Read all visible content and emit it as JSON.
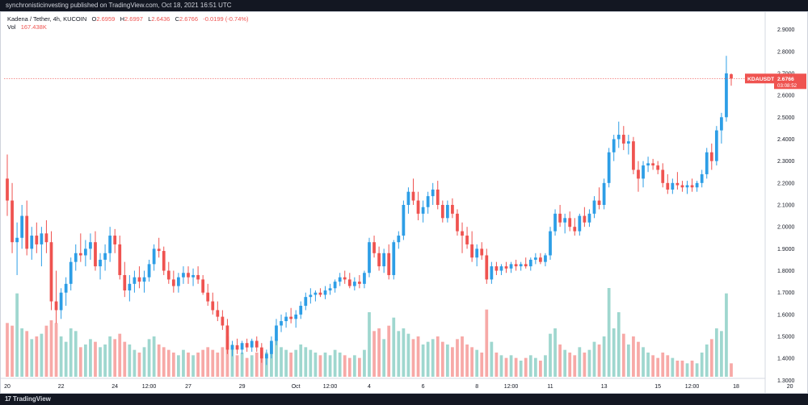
{
  "header": {
    "publisher_line": "synchronisticinvesting published on TradingView.com, Oct 18, 2021 16:51 UTC"
  },
  "legend": {
    "symbol_line": "Kadena / Tether, 4h, KUCOIN",
    "open_label": "O",
    "open": "2.6959",
    "high_label": "H",
    "high": "2.6997",
    "low_label": "L",
    "low": "2.6436",
    "close_label": "C",
    "close": "2.6766",
    "change": "-0.0199 (-0.74%)",
    "vol_label": "Vol",
    "vol_value": "167.438K"
  },
  "price_tag": {
    "symbol": "KDAUSDT",
    "price": "2.6766",
    "countdown": "03:08:52"
  },
  "footer": {
    "brand": "TradingView",
    "brand_mark": "17"
  },
  "colors": {
    "up": "#26a69a",
    "up_bar": "#2d9ee6",
    "down": "#ef5350",
    "vol_up": "#9fd7cf",
    "vol_down": "#f7a9a7",
    "current_price_line": "#ef5350"
  },
  "chart_data": {
    "type": "candlestick",
    "symbol": "KDAUSDT",
    "interval": "4h",
    "exchange": "KUCOIN",
    "y_axis": {
      "position": "right",
      "ylim": [
        1.25,
        2.95
      ],
      "ticks": [
        2.9,
        2.8,
        2.7,
        2.6,
        2.5,
        2.4,
        2.3,
        2.2,
        2.1,
        2.0,
        1.9,
        1.8,
        1.7,
        1.6,
        1.5,
        1.4,
        1.3
      ],
      "tick_labels": [
        "2.9000",
        "2.8000",
        "2.7000",
        "2.6000",
        "2.5000",
        "2.4000",
        "2.3000",
        "2.2000",
        "2.1000",
        "2.0000",
        "1.9000",
        "1.8000",
        "1.7000",
        "1.6000",
        "1.5000",
        "1.4000",
        "1.3000"
      ]
    },
    "x_axis": {
      "tick_labels": [
        "20",
        "22",
        "24",
        "12:00",
        "27",
        "29",
        "Oct",
        "12:00",
        "4",
        "6",
        "8",
        "12:00",
        "11",
        "13",
        "15",
        "12:00",
        "18",
        "20"
      ],
      "tick_index": [
        0,
        11,
        22,
        29,
        37,
        48,
        59,
        66,
        74,
        85,
        96,
        103,
        111,
        122,
        133,
        140,
        149,
        160
      ]
    },
    "current_price": 2.6766,
    "grid": false,
    "candles": [
      {
        "o": 2.22,
        "h": 2.33,
        "l": 2.05,
        "c": 2.12,
        "v": 1.0
      },
      {
        "o": 2.12,
        "h": 2.2,
        "l": 1.88,
        "c": 1.93,
        "v": 0.95
      },
      {
        "o": 1.93,
        "h": 2.02,
        "l": 1.78,
        "c": 1.95,
        "v": 1.55
      },
      {
        "o": 1.95,
        "h": 2.1,
        "l": 1.9,
        "c": 2.05,
        "v": 0.9
      },
      {
        "o": 2.05,
        "h": 2.12,
        "l": 1.87,
        "c": 1.9,
        "v": 0.85
      },
      {
        "o": 1.9,
        "h": 2.0,
        "l": 1.85,
        "c": 1.96,
        "v": 0.7
      },
      {
        "o": 1.96,
        "h": 2.02,
        "l": 1.88,
        "c": 1.92,
        "v": 0.75
      },
      {
        "o": 1.92,
        "h": 2.0,
        "l": 1.82,
        "c": 1.97,
        "v": 0.8
      },
      {
        "o": 1.97,
        "h": 2.03,
        "l": 1.88,
        "c": 1.93,
        "v": 0.95
      },
      {
        "o": 1.93,
        "h": 1.98,
        "l": 1.62,
        "c": 1.66,
        "v": 1.05
      },
      {
        "o": 1.66,
        "h": 1.8,
        "l": 1.56,
        "c": 1.62,
        "v": 1.0
      },
      {
        "o": 1.62,
        "h": 1.72,
        "l": 1.58,
        "c": 1.7,
        "v": 0.75
      },
      {
        "o": 1.7,
        "h": 1.77,
        "l": 1.64,
        "c": 1.74,
        "v": 0.65
      },
      {
        "o": 1.74,
        "h": 1.86,
        "l": 1.71,
        "c": 1.84,
        "v": 0.9
      },
      {
        "o": 1.84,
        "h": 1.92,
        "l": 1.8,
        "c": 1.88,
        "v": 0.85
      },
      {
        "o": 1.88,
        "h": 1.97,
        "l": 1.84,
        "c": 1.87,
        "v": 0.55
      },
      {
        "o": 1.87,
        "h": 1.94,
        "l": 1.82,
        "c": 1.9,
        "v": 0.6
      },
      {
        "o": 1.9,
        "h": 1.97,
        "l": 1.85,
        "c": 1.93,
        "v": 0.7
      },
      {
        "o": 1.93,
        "h": 1.98,
        "l": 1.8,
        "c": 1.82,
        "v": 0.65
      },
      {
        "o": 1.82,
        "h": 1.88,
        "l": 1.76,
        "c": 1.85,
        "v": 0.55
      },
      {
        "o": 1.85,
        "h": 1.92,
        "l": 1.8,
        "c": 1.88,
        "v": 0.6
      },
      {
        "o": 1.88,
        "h": 2.0,
        "l": 1.84,
        "c": 1.96,
        "v": 0.75
      },
      {
        "o": 1.96,
        "h": 1.99,
        "l": 1.88,
        "c": 1.92,
        "v": 0.7
      },
      {
        "o": 1.92,
        "h": 1.96,
        "l": 1.76,
        "c": 1.78,
        "v": 0.8
      },
      {
        "o": 1.78,
        "h": 1.84,
        "l": 1.68,
        "c": 1.71,
        "v": 0.65
      },
      {
        "o": 1.71,
        "h": 1.78,
        "l": 1.66,
        "c": 1.74,
        "v": 0.6
      },
      {
        "o": 1.74,
        "h": 1.8,
        "l": 1.7,
        "c": 1.77,
        "v": 0.5
      },
      {
        "o": 1.77,
        "h": 1.82,
        "l": 1.72,
        "c": 1.75,
        "v": 0.45
      },
      {
        "o": 1.75,
        "h": 1.8,
        "l": 1.7,
        "c": 1.77,
        "v": 0.55
      },
      {
        "o": 1.77,
        "h": 1.85,
        "l": 1.75,
        "c": 1.83,
        "v": 0.7
      },
      {
        "o": 1.83,
        "h": 1.92,
        "l": 1.8,
        "c": 1.9,
        "v": 0.75
      },
      {
        "o": 1.9,
        "h": 1.95,
        "l": 1.86,
        "c": 1.89,
        "v": 0.6
      },
      {
        "o": 1.89,
        "h": 1.91,
        "l": 1.78,
        "c": 1.8,
        "v": 0.55
      },
      {
        "o": 1.8,
        "h": 1.84,
        "l": 1.74,
        "c": 1.76,
        "v": 0.5
      },
      {
        "o": 1.76,
        "h": 1.8,
        "l": 1.7,
        "c": 1.73,
        "v": 0.45
      },
      {
        "o": 1.73,
        "h": 1.79,
        "l": 1.7,
        "c": 1.77,
        "v": 0.4
      },
      {
        "o": 1.77,
        "h": 1.82,
        "l": 1.74,
        "c": 1.79,
        "v": 0.5
      },
      {
        "o": 1.79,
        "h": 1.82,
        "l": 1.74,
        "c": 1.77,
        "v": 0.45
      },
      {
        "o": 1.77,
        "h": 1.81,
        "l": 1.73,
        "c": 1.78,
        "v": 0.4
      },
      {
        "o": 1.78,
        "h": 1.82,
        "l": 1.74,
        "c": 1.76,
        "v": 0.45
      },
      {
        "o": 1.76,
        "h": 1.78,
        "l": 1.69,
        "c": 1.7,
        "v": 0.5
      },
      {
        "o": 1.7,
        "h": 1.74,
        "l": 1.64,
        "c": 1.66,
        "v": 0.55
      },
      {
        "o": 1.66,
        "h": 1.7,
        "l": 1.6,
        "c": 1.62,
        "v": 0.5
      },
      {
        "o": 1.62,
        "h": 1.66,
        "l": 1.57,
        "c": 1.59,
        "v": 0.45
      },
      {
        "o": 1.59,
        "h": 1.62,
        "l": 1.53,
        "c": 1.55,
        "v": 0.55
      },
      {
        "o": 1.55,
        "h": 1.58,
        "l": 1.42,
        "c": 1.44,
        "v": 0.75
      },
      {
        "o": 1.44,
        "h": 1.48,
        "l": 1.41,
        "c": 1.46,
        "v": 0.6
      },
      {
        "o": 1.46,
        "h": 1.49,
        "l": 1.42,
        "c": 1.44,
        "v": 0.4
      },
      {
        "o": 1.44,
        "h": 1.48,
        "l": 1.42,
        "c": 1.47,
        "v": 0.45
      },
      {
        "o": 1.47,
        "h": 1.49,
        "l": 1.43,
        "c": 1.45,
        "v": 0.35
      },
      {
        "o": 1.45,
        "h": 1.49,
        "l": 1.43,
        "c": 1.48,
        "v": 0.4
      },
      {
        "o": 1.48,
        "h": 1.5,
        "l": 1.43,
        "c": 1.45,
        "v": 0.45
      },
      {
        "o": 1.45,
        "h": 1.47,
        "l": 1.38,
        "c": 1.4,
        "v": 0.5
      },
      {
        "o": 1.4,
        "h": 1.44,
        "l": 1.37,
        "c": 1.42,
        "v": 0.45
      },
      {
        "o": 1.42,
        "h": 1.5,
        "l": 1.4,
        "c": 1.48,
        "v": 0.6
      },
      {
        "o": 1.48,
        "h": 1.58,
        "l": 1.46,
        "c": 1.55,
        "v": 0.7
      },
      {
        "o": 1.55,
        "h": 1.6,
        "l": 1.52,
        "c": 1.57,
        "v": 0.55
      },
      {
        "o": 1.57,
        "h": 1.61,
        "l": 1.54,
        "c": 1.59,
        "v": 0.5
      },
      {
        "o": 1.59,
        "h": 1.63,
        "l": 1.56,
        "c": 1.58,
        "v": 0.45
      },
      {
        "o": 1.58,
        "h": 1.62,
        "l": 1.54,
        "c": 1.6,
        "v": 0.5
      },
      {
        "o": 1.6,
        "h": 1.66,
        "l": 1.58,
        "c": 1.64,
        "v": 0.6
      },
      {
        "o": 1.64,
        "h": 1.7,
        "l": 1.62,
        "c": 1.68,
        "v": 0.55
      },
      {
        "o": 1.68,
        "h": 1.72,
        "l": 1.65,
        "c": 1.69,
        "v": 0.5
      },
      {
        "o": 1.69,
        "h": 1.71,
        "l": 1.66,
        "c": 1.7,
        "v": 0.45
      },
      {
        "o": 1.7,
        "h": 1.72,
        "l": 1.68,
        "c": 1.69,
        "v": 0.4
      },
      {
        "o": 1.69,
        "h": 1.73,
        "l": 1.67,
        "c": 1.71,
        "v": 0.45
      },
      {
        "o": 1.71,
        "h": 1.74,
        "l": 1.69,
        "c": 1.72,
        "v": 0.4
      },
      {
        "o": 1.72,
        "h": 1.76,
        "l": 1.7,
        "c": 1.75,
        "v": 0.5
      },
      {
        "o": 1.75,
        "h": 1.79,
        "l": 1.73,
        "c": 1.77,
        "v": 0.45
      },
      {
        "o": 1.77,
        "h": 1.8,
        "l": 1.74,
        "c": 1.76,
        "v": 0.4
      },
      {
        "o": 1.76,
        "h": 1.79,
        "l": 1.72,
        "c": 1.73,
        "v": 0.35
      },
      {
        "o": 1.73,
        "h": 1.77,
        "l": 1.71,
        "c": 1.75,
        "v": 0.4
      },
      {
        "o": 1.75,
        "h": 1.78,
        "l": 1.72,
        "c": 1.74,
        "v": 0.35
      },
      {
        "o": 1.74,
        "h": 1.8,
        "l": 1.72,
        "c": 1.79,
        "v": 0.5
      },
      {
        "o": 1.79,
        "h": 1.95,
        "l": 1.77,
        "c": 1.93,
        "v": 1.2
      },
      {
        "o": 1.93,
        "h": 1.96,
        "l": 1.86,
        "c": 1.88,
        "v": 0.85
      },
      {
        "o": 1.88,
        "h": 1.91,
        "l": 1.8,
        "c": 1.82,
        "v": 0.9
      },
      {
        "o": 1.82,
        "h": 1.9,
        "l": 1.79,
        "c": 1.88,
        "v": 0.7
      },
      {
        "o": 1.88,
        "h": 1.92,
        "l": 1.76,
        "c": 1.78,
        "v": 0.95
      },
      {
        "o": 1.78,
        "h": 1.94,
        "l": 1.76,
        "c": 1.93,
        "v": 1.1
      },
      {
        "o": 1.93,
        "h": 1.98,
        "l": 1.9,
        "c": 1.96,
        "v": 0.85
      },
      {
        "o": 1.96,
        "h": 2.12,
        "l": 1.94,
        "c": 2.1,
        "v": 0.9
      },
      {
        "o": 2.1,
        "h": 2.18,
        "l": 2.06,
        "c": 2.16,
        "v": 0.8
      },
      {
        "o": 2.16,
        "h": 2.22,
        "l": 2.1,
        "c": 2.12,
        "v": 0.7
      },
      {
        "o": 2.12,
        "h": 2.16,
        "l": 2.03,
        "c": 2.06,
        "v": 0.75
      },
      {
        "o": 2.06,
        "h": 2.12,
        "l": 2.02,
        "c": 2.09,
        "v": 0.6
      },
      {
        "o": 2.09,
        "h": 2.16,
        "l": 2.06,
        "c": 2.14,
        "v": 0.65
      },
      {
        "o": 2.14,
        "h": 2.2,
        "l": 2.1,
        "c": 2.17,
        "v": 0.7
      },
      {
        "o": 2.17,
        "h": 2.21,
        "l": 2.08,
        "c": 2.1,
        "v": 0.75
      },
      {
        "o": 2.1,
        "h": 2.12,
        "l": 2.02,
        "c": 2.04,
        "v": 0.65
      },
      {
        "o": 2.04,
        "h": 2.12,
        "l": 2.02,
        "c": 2.1,
        "v": 0.6
      },
      {
        "o": 2.1,
        "h": 2.13,
        "l": 2.04,
        "c": 2.06,
        "v": 0.55
      },
      {
        "o": 2.06,
        "h": 2.08,
        "l": 1.96,
        "c": 1.98,
        "v": 0.7
      },
      {
        "o": 1.98,
        "h": 2.02,
        "l": 1.88,
        "c": 1.96,
        "v": 0.75
      },
      {
        "o": 1.96,
        "h": 2.0,
        "l": 1.9,
        "c": 1.92,
        "v": 0.6
      },
      {
        "o": 1.92,
        "h": 1.98,
        "l": 1.84,
        "c": 1.86,
        "v": 0.55
      },
      {
        "o": 1.86,
        "h": 1.92,
        "l": 1.82,
        "c": 1.9,
        "v": 0.5
      },
      {
        "o": 1.9,
        "h": 1.93,
        "l": 1.85,
        "c": 1.87,
        "v": 0.45
      },
      {
        "o": 1.87,
        "h": 1.9,
        "l": 1.74,
        "c": 1.76,
        "v": 1.25
      },
      {
        "o": 1.76,
        "h": 1.84,
        "l": 1.74,
        "c": 1.82,
        "v": 0.65
      },
      {
        "o": 1.82,
        "h": 1.84,
        "l": 1.78,
        "c": 1.8,
        "v": 0.45
      },
      {
        "o": 1.8,
        "h": 1.83,
        "l": 1.78,
        "c": 1.82,
        "v": 0.4
      },
      {
        "o": 1.82,
        "h": 1.84,
        "l": 1.79,
        "c": 1.81,
        "v": 0.35
      },
      {
        "o": 1.81,
        "h": 1.84,
        "l": 1.79,
        "c": 1.83,
        "v": 0.4
      },
      {
        "o": 1.83,
        "h": 1.85,
        "l": 1.8,
        "c": 1.82,
        "v": 0.35
      },
      {
        "o": 1.82,
        "h": 1.84,
        "l": 1.8,
        "c": 1.83,
        "v": 0.3
      },
      {
        "o": 1.83,
        "h": 1.86,
        "l": 1.81,
        "c": 1.82,
        "v": 0.35
      },
      {
        "o": 1.82,
        "h": 1.86,
        "l": 1.8,
        "c": 1.85,
        "v": 0.4
      },
      {
        "o": 1.85,
        "h": 1.88,
        "l": 1.83,
        "c": 1.86,
        "v": 0.35
      },
      {
        "o": 1.86,
        "h": 1.88,
        "l": 1.83,
        "c": 1.84,
        "v": 0.3
      },
      {
        "o": 1.84,
        "h": 1.88,
        "l": 1.82,
        "c": 1.87,
        "v": 0.4
      },
      {
        "o": 1.87,
        "h": 2.0,
        "l": 1.85,
        "c": 1.98,
        "v": 0.8
      },
      {
        "o": 1.98,
        "h": 2.08,
        "l": 1.96,
        "c": 2.06,
        "v": 0.9
      },
      {
        "o": 2.06,
        "h": 2.1,
        "l": 2.0,
        "c": 2.02,
        "v": 0.6
      },
      {
        "o": 2.02,
        "h": 2.06,
        "l": 1.97,
        "c": 2.04,
        "v": 0.5
      },
      {
        "o": 2.04,
        "h": 2.07,
        "l": 1.98,
        "c": 2.0,
        "v": 0.45
      },
      {
        "o": 2.0,
        "h": 2.04,
        "l": 1.96,
        "c": 1.98,
        "v": 0.4
      },
      {
        "o": 1.98,
        "h": 2.06,
        "l": 1.96,
        "c": 2.05,
        "v": 0.55
      },
      {
        "o": 2.05,
        "h": 2.09,
        "l": 2.0,
        "c": 2.02,
        "v": 0.45
      },
      {
        "o": 2.02,
        "h": 2.08,
        "l": 2.0,
        "c": 2.06,
        "v": 0.5
      },
      {
        "o": 2.06,
        "h": 2.14,
        "l": 2.04,
        "c": 2.12,
        "v": 0.65
      },
      {
        "o": 2.12,
        "h": 2.18,
        "l": 2.08,
        "c": 2.1,
        "v": 0.6
      },
      {
        "o": 2.1,
        "h": 2.22,
        "l": 2.08,
        "c": 2.2,
        "v": 0.75
      },
      {
        "o": 2.2,
        "h": 2.36,
        "l": 2.18,
        "c": 2.34,
        "v": 1.65
      },
      {
        "o": 2.34,
        "h": 2.42,
        "l": 2.3,
        "c": 2.4,
        "v": 0.9
      },
      {
        "o": 2.4,
        "h": 2.48,
        "l": 2.36,
        "c": 2.42,
        "v": 1.2
      },
      {
        "o": 2.42,
        "h": 2.46,
        "l": 2.35,
        "c": 2.38,
        "v": 0.8
      },
      {
        "o": 2.38,
        "h": 2.42,
        "l": 2.33,
        "c": 2.39,
        "v": 0.6
      },
      {
        "o": 2.39,
        "h": 2.41,
        "l": 2.24,
        "c": 2.26,
        "v": 0.75
      },
      {
        "o": 2.26,
        "h": 2.3,
        "l": 2.16,
        "c": 2.22,
        "v": 0.65
      },
      {
        "o": 2.22,
        "h": 2.3,
        "l": 2.18,
        "c": 2.28,
        "v": 0.55
      },
      {
        "o": 2.28,
        "h": 2.32,
        "l": 2.25,
        "c": 2.29,
        "v": 0.45
      },
      {
        "o": 2.29,
        "h": 2.31,
        "l": 2.26,
        "c": 2.28,
        "v": 0.4
      },
      {
        "o": 2.28,
        "h": 2.3,
        "l": 2.24,
        "c": 2.26,
        "v": 0.35
      },
      {
        "o": 2.26,
        "h": 2.29,
        "l": 2.18,
        "c": 2.2,
        "v": 0.45
      },
      {
        "o": 2.2,
        "h": 2.24,
        "l": 2.15,
        "c": 2.17,
        "v": 0.4
      },
      {
        "o": 2.17,
        "h": 2.22,
        "l": 2.15,
        "c": 2.2,
        "v": 0.35
      },
      {
        "o": 2.2,
        "h": 2.25,
        "l": 2.17,
        "c": 2.19,
        "v": 0.3
      },
      {
        "o": 2.19,
        "h": 2.21,
        "l": 2.16,
        "c": 2.18,
        "v": 0.3
      },
      {
        "o": 2.18,
        "h": 2.21,
        "l": 2.15,
        "c": 2.19,
        "v": 0.25
      },
      {
        "o": 2.19,
        "h": 2.22,
        "l": 2.16,
        "c": 2.18,
        "v": 0.3
      },
      {
        "o": 2.18,
        "h": 2.21,
        "l": 2.16,
        "c": 2.2,
        "v": 0.25
      },
      {
        "o": 2.2,
        "h": 2.26,
        "l": 2.18,
        "c": 2.24,
        "v": 0.45
      },
      {
        "o": 2.24,
        "h": 2.36,
        "l": 2.22,
        "c": 2.34,
        "v": 0.6
      },
      {
        "o": 2.34,
        "h": 2.38,
        "l": 2.26,
        "c": 2.3,
        "v": 0.7
      },
      {
        "o": 2.3,
        "h": 2.46,
        "l": 2.28,
        "c": 2.44,
        "v": 0.9
      },
      {
        "o": 2.44,
        "h": 2.52,
        "l": 2.38,
        "c": 2.5,
        "v": 0.85
      },
      {
        "o": 2.5,
        "h": 2.78,
        "l": 2.48,
        "c": 2.7,
        "v": 1.55
      },
      {
        "o": 2.6959,
        "h": 2.6997,
        "l": 2.6436,
        "c": 2.6766,
        "v": 0.25
      }
    ]
  }
}
